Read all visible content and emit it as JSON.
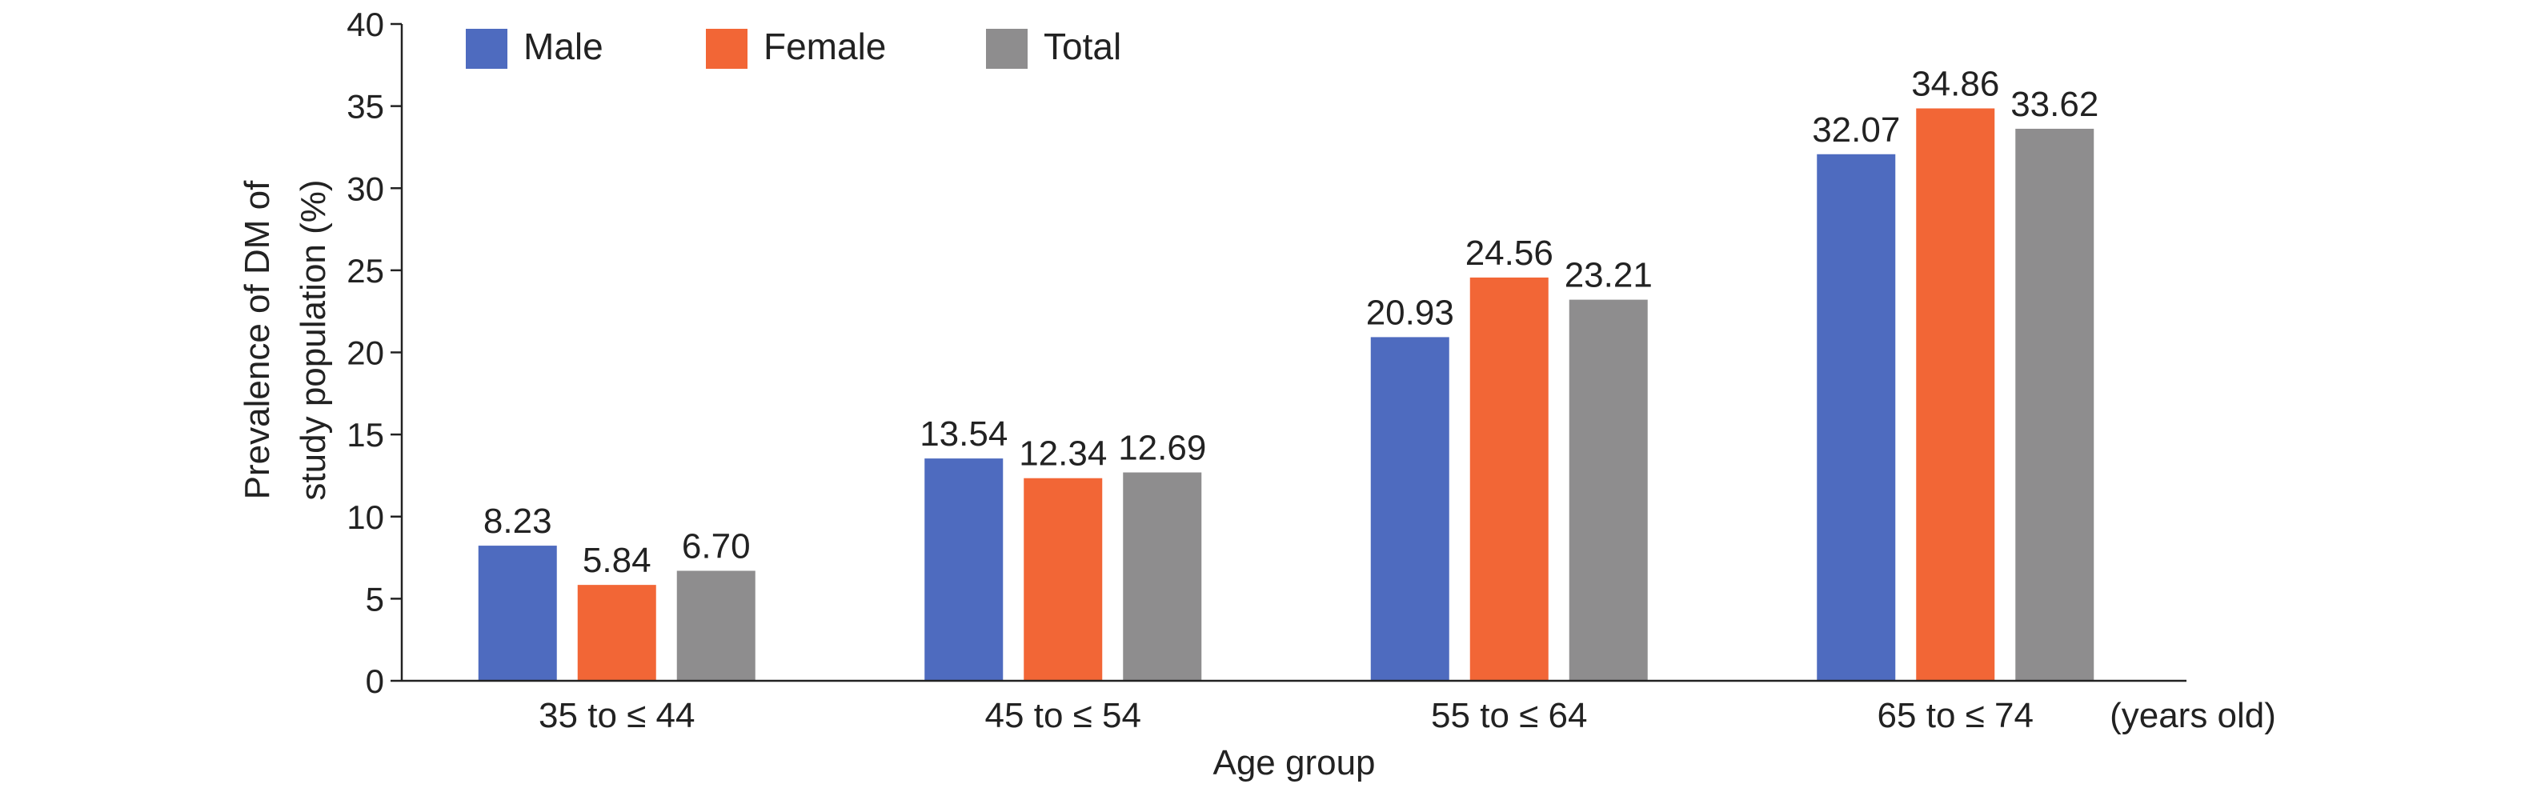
{
  "chart_data": {
    "type": "bar",
    "categories": [
      "35 to ≤ 44",
      "45 to ≤ 54",
      "55 to ≤ 64",
      "65 to ≤ 74"
    ],
    "series": [
      {
        "name": "Male",
        "color": "#4e6bbf",
        "values": [
          8.23,
          13.54,
          20.93,
          32.07
        ],
        "labels": [
          "8.23",
          "13.54",
          "20.93",
          "32.07"
        ]
      },
      {
        "name": "Female",
        "color": "#f26636",
        "values": [
          5.84,
          12.34,
          24.56,
          34.86
        ],
        "labels": [
          "5.84",
          "12.34",
          "24.56",
          "34.86"
        ]
      },
      {
        "name": "Total",
        "color": "#8e8d8e",
        "values": [
          6.7,
          12.69,
          23.21,
          33.62
        ],
        "labels": [
          "6.70",
          "12.69",
          "23.21",
          "33.62"
        ]
      }
    ],
    "xlabel": "Age group",
    "x_unit": "(years old)",
    "ylabel_line1": "Prevalence of DM of",
    "ylabel_line2": "study population (%)",
    "ylim": [
      0,
      40
    ],
    "yticks": [
      0,
      5,
      10,
      15,
      20,
      25,
      30,
      35,
      40
    ],
    "grid": false,
    "legend_position": "top-left"
  }
}
